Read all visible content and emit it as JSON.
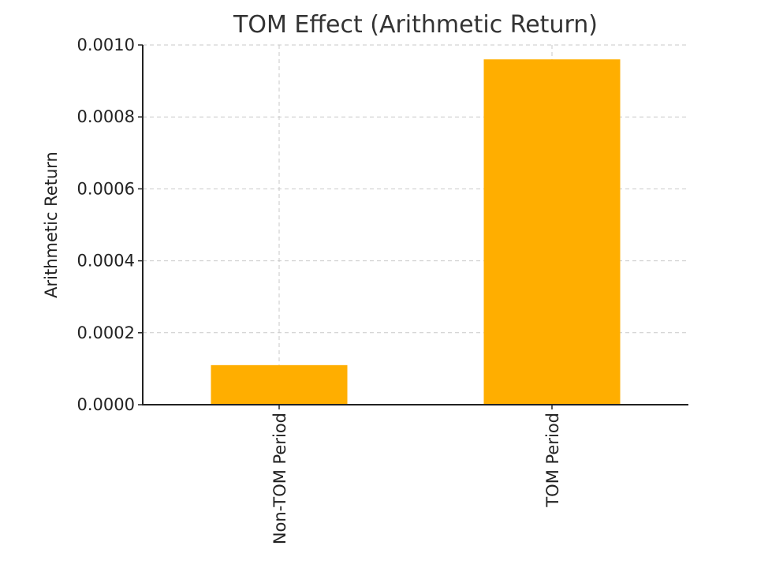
{
  "chart_data": {
    "type": "bar",
    "title": "TOM Effect (Arithmetic Return)",
    "xlabel": "",
    "ylabel": "Arithmetic Return",
    "categories": [
      "Non-TOM Period",
      "TOM Period"
    ],
    "values": [
      0.00011,
      0.00096
    ],
    "ylim": [
      0,
      0.001
    ],
    "yticks": [
      "0.0000",
      "0.0002",
      "0.0004",
      "0.0006",
      "0.0008",
      "0.0010"
    ],
    "grid": true,
    "bar_color": "#FFAE00"
  }
}
